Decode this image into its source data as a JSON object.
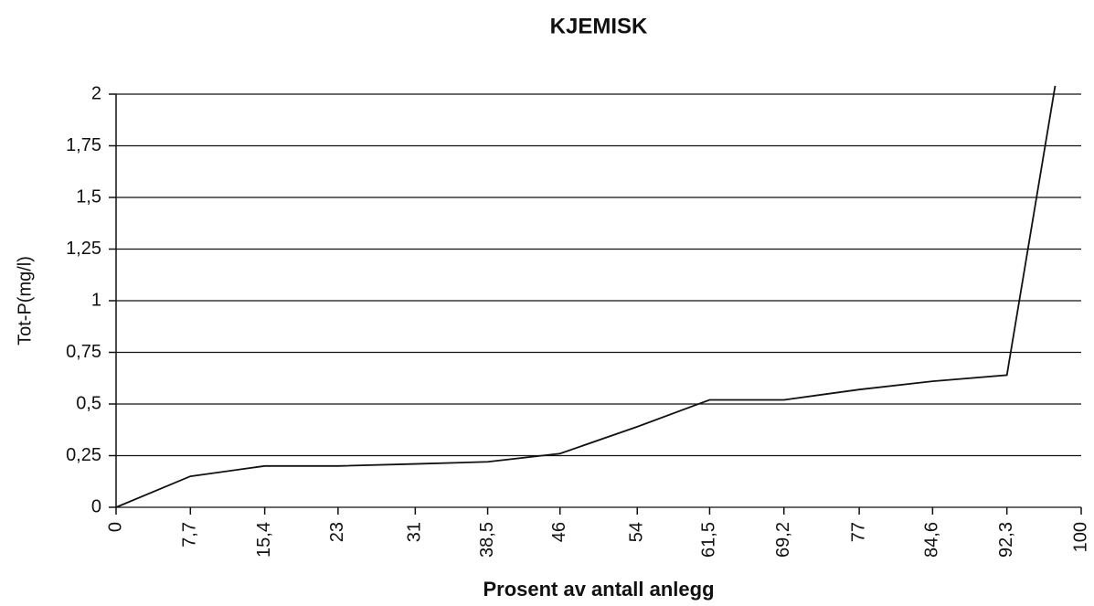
{
  "chart_data": {
    "type": "line",
    "title": "KJEMISK",
    "x_label": "Prosent av antall anlegg",
    "y_label": "Tot-P(mg/l)",
    "x": [
      0,
      7.7,
      15.4,
      23,
      31,
      38.5,
      46,
      54,
      61.5,
      69.2,
      77,
      84.6,
      92.3,
      97.3
    ],
    "series": [
      {
        "name": "KJEMISK",
        "color": "#111111",
        "values": [
          0,
          0.15,
          0.2,
          0.2,
          0.21,
          0.22,
          0.26,
          0.39,
          0.52,
          0.52,
          0.57,
          0.61,
          0.64,
          2.04
        ]
      }
    ],
    "xlim": [
      0,
      100
    ],
    "xticks": [
      0,
      {
        "value": 7.7,
        "label": "7,7"
      },
      {
        "value": 15.4,
        "label": "15,4"
      },
      23,
      31,
      {
        "value": 38.5,
        "label": "38,5"
      },
      46,
      54,
      {
        "value": 61.5,
        "label": "61,5"
      },
      {
        "value": 69.2,
        "label": "69,2"
      },
      77,
      {
        "value": 84.6,
        "label": "84,6"
      },
      {
        "value": 92.3,
        "label": "92,3"
      },
      100
    ],
    "ylim": [
      0,
      2
    ],
    "yticks": [
      0,
      {
        "value": 0.25,
        "label": "0,25"
      },
      {
        "value": 0.5,
        "label": "0,5"
      },
      {
        "value": 0.75,
        "label": "0,75"
      },
      1,
      {
        "value": 1.25,
        "label": "1,25"
      },
      {
        "value": 1.5,
        "label": "1,5"
      },
      {
        "value": 1.75,
        "label": "1,75"
      },
      2
    ],
    "grid": true
  }
}
